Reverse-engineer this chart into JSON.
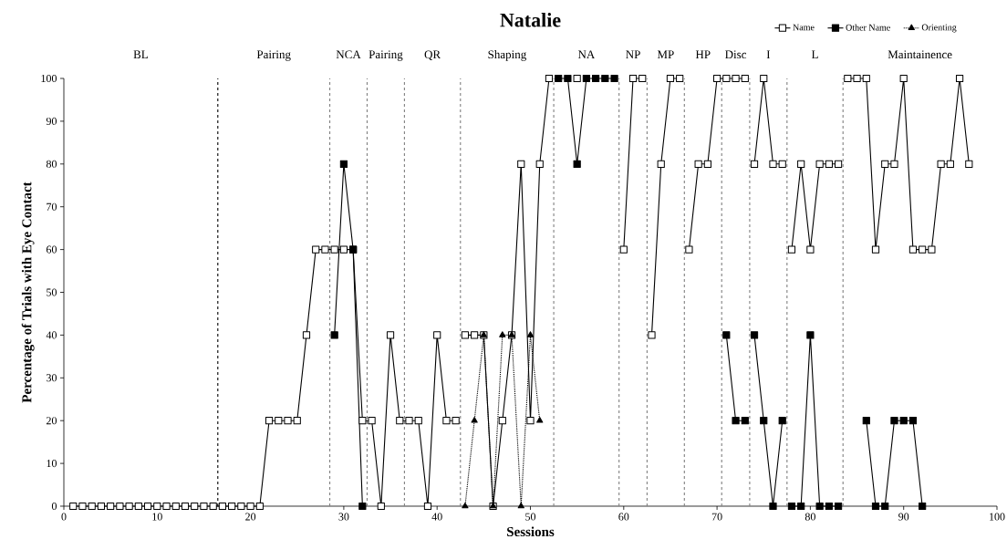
{
  "chart_data": {
    "type": "line",
    "title": "Natalie",
    "xlabel": "Sessions",
    "ylabel": "Percentage of Trials with Eye Contact",
    "xlim": [
      0,
      100
    ],
    "ylim": [
      0,
      100
    ],
    "xticks": [
      0,
      10,
      20,
      30,
      40,
      50,
      60,
      70,
      80,
      90,
      100
    ],
    "yticks": [
      0,
      10,
      20,
      30,
      40,
      50,
      60,
      70,
      80,
      90,
      100
    ],
    "grid": false,
    "legend": "top right",
    "series": [
      {
        "name": "Name",
        "color": "#000000",
        "marker": "square",
        "line_style": "solid",
        "x": [
          1,
          2,
          3,
          4,
          5,
          6,
          7,
          8,
          9,
          10,
          11,
          12,
          13,
          14,
          15,
          16,
          17,
          18,
          19,
          20,
          21,
          22,
          23,
          24,
          25,
          26,
          27,
          28,
          29,
          30,
          31,
          32,
          33,
          34,
          35,
          36,
          37,
          38,
          39,
          40,
          41,
          42,
          42.5,
          43,
          44,
          45,
          46,
          47,
          48,
          49,
          50,
          51,
          52,
          53,
          55,
          59,
          60,
          61,
          62,
          62.5,
          63,
          64,
          65,
          66,
          66.5,
          67,
          68,
          69,
          70,
          71,
          72,
          73,
          73.5,
          74,
          75,
          76,
          77,
          77.5,
          78,
          79,
          80,
          81,
          82,
          83,
          83.5,
          84,
          85,
          86,
          87,
          88,
          89,
          90,
          91,
          92,
          93,
          94,
          95,
          96,
          97
        ],
        "values": [
          0,
          0,
          0,
          0,
          0,
          0,
          0,
          0,
          0,
          0,
          0,
          0,
          0,
          0,
          0,
          0,
          0,
          0,
          0,
          0,
          0,
          20,
          20,
          20,
          20,
          40,
          60,
          60,
          60,
          60,
          60,
          20,
          20,
          0,
          40,
          20,
          20,
          20,
          0,
          40,
          20,
          20,
          null,
          40,
          40,
          40,
          0,
          20,
          40,
          80,
          20,
          80,
          100,
          null,
          100,
          null,
          60,
          100,
          100,
          null,
          40,
          80,
          100,
          100,
          null,
          60,
          80,
          80,
          100,
          100,
          100,
          100,
          null,
          80,
          100,
          80,
          80,
          null,
          60,
          80,
          60,
          80,
          80,
          80,
          null,
          100,
          100,
          100,
          60,
          80,
          80,
          100,
          60,
          60,
          60,
          80,
          80,
          100,
          80
        ]
      },
      {
        "name": "Other Name",
        "color": "#000000",
        "marker": "square",
        "line_style": "solid",
        "x": [
          29,
          30,
          31,
          32,
          32.5,
          53,
          54,
          55,
          56,
          57,
          58,
          59,
          59.5,
          71,
          72,
          73,
          73.5,
          74,
          75,
          76,
          77,
          77.5,
          78,
          79,
          80,
          81,
          82,
          83,
          83.5,
          86,
          87,
          88,
          89,
          90,
          91,
          92
        ],
        "values": [
          40,
          80,
          60,
          0,
          null,
          100,
          100,
          80,
          100,
          100,
          100,
          100,
          null,
          40,
          20,
          20,
          null,
          40,
          20,
          0,
          20,
          null,
          0,
          0,
          40,
          0,
          0,
          0,
          null,
          20,
          0,
          0,
          20,
          20,
          20,
          0
        ]
      },
      {
        "name": "Orienting",
        "color": "#000000",
        "marker": "triangle",
        "line_style": "dotted",
        "x": [
          43,
          44,
          45,
          46,
          47,
          48,
          49,
          50,
          51
        ],
        "values": [
          0,
          20,
          40,
          0,
          40,
          40,
          0,
          40,
          20
        ]
      }
    ],
    "ref_lines": [
      {
        "axis": "x",
        "value": 16.5,
        "color": "#000000",
        "line_style": "dashed"
      },
      {
        "axis": "x",
        "value": 28.5,
        "color": "#808080",
        "line_style": "dashed"
      },
      {
        "axis": "x",
        "value": 32.5,
        "color": "#808080",
        "line_style": "dashed"
      },
      {
        "axis": "x",
        "value": 36.5,
        "color": "#808080",
        "line_style": "dashed"
      },
      {
        "axis": "x",
        "value": 42.5,
        "color": "#808080",
        "line_style": "dashed"
      },
      {
        "axis": "x",
        "value": 52.5,
        "color": "#808080",
        "line_style": "dashed"
      },
      {
        "axis": "x",
        "value": 59.5,
        "color": "#808080",
        "line_style": "dashed"
      },
      {
        "axis": "x",
        "value": 62.5,
        "color": "#808080",
        "line_style": "dashed"
      },
      {
        "axis": "x",
        "value": 66.5,
        "color": "#808080",
        "line_style": "dashed"
      },
      {
        "axis": "x",
        "value": 70.5,
        "color": "#808080",
        "line_style": "dashed"
      },
      {
        "axis": "x",
        "value": 73.5,
        "color": "#808080",
        "line_style": "dashed"
      },
      {
        "axis": "x",
        "value": 77.5,
        "color": "#808080",
        "line_style": "dashed"
      },
      {
        "axis": "x",
        "value": 83.5,
        "color": "#808080",
        "line_style": "dashed"
      }
    ],
    "annotations": [
      "BL",
      "Pairing",
      "NCA",
      "Pairing",
      "QR",
      "Shaping",
      "NA",
      "NP",
      "MP",
      "HP",
      "Disc",
      "I",
      "L",
      "Maintainence"
    ]
  }
}
